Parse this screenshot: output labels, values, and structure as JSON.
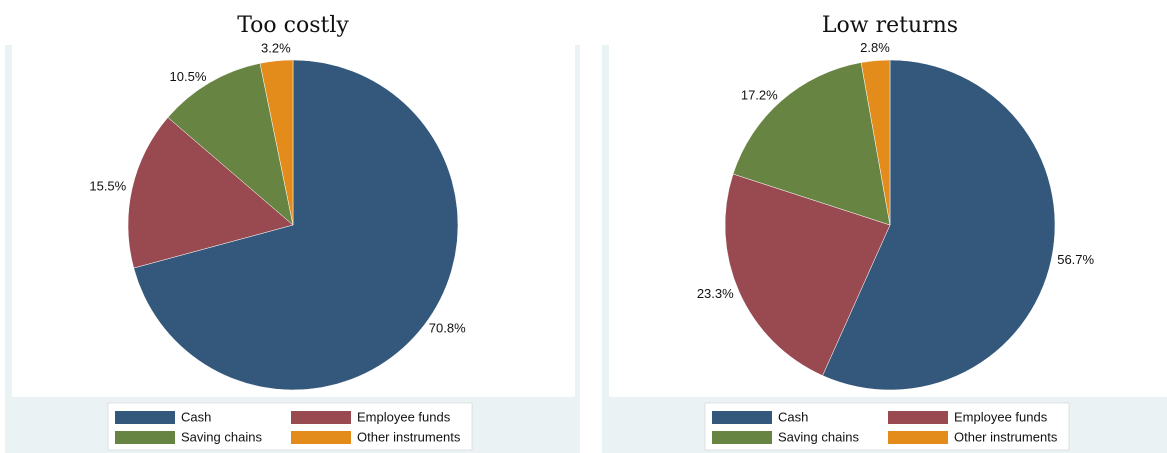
{
  "chart_data": [
    {
      "type": "pie",
      "title": "Too costly",
      "categories": [
        "Cash",
        "Employee funds",
        "Saving chains",
        "Other instruments"
      ],
      "values": [
        70.8,
        15.5,
        10.5,
        3.2
      ],
      "value_labels": [
        "70.8%",
        "15.5%",
        "10.5%",
        "3.2%"
      ],
      "colors": [
        "#34587c",
        "#994a50",
        "#688442",
        "#e38b1b"
      ]
    },
    {
      "type": "pie",
      "title": "Low returns",
      "categories": [
        "Cash",
        "Employee funds",
        "Saving chains",
        "Other instruments"
      ],
      "values": [
        56.7,
        23.3,
        17.2,
        2.8
      ],
      "value_labels": [
        "56.7%",
        "23.3%",
        "17.2%",
        "2.8%"
      ],
      "colors": [
        "#34587c",
        "#994a50",
        "#688442",
        "#e38b1b"
      ]
    }
  ]
}
